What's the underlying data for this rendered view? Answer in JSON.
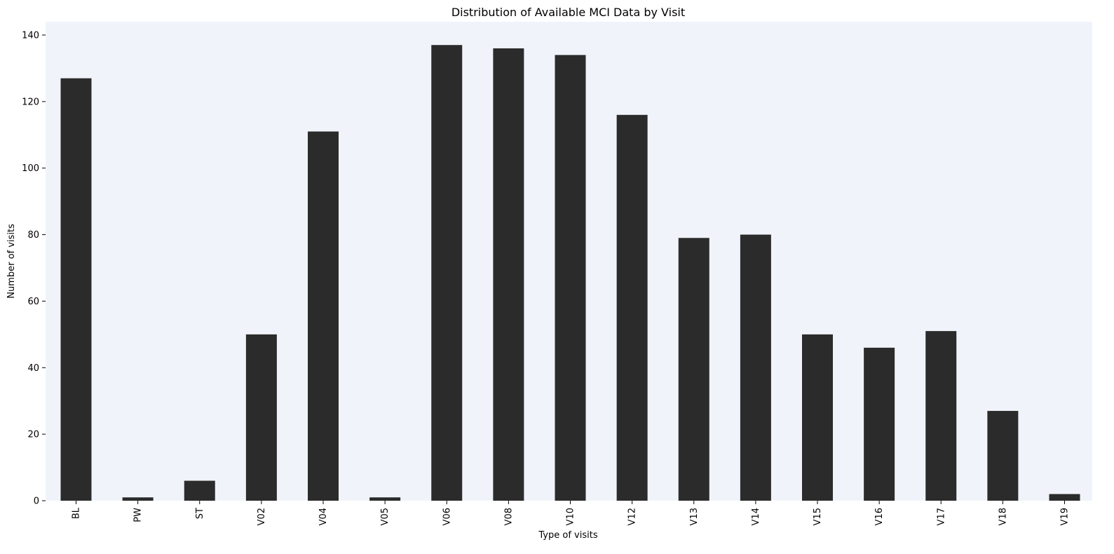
{
  "chart_data": {
    "type": "bar",
    "title": "Distribution of Available MCI Data by Visit",
    "xlabel": "Type of visits",
    "ylabel": "Number of visits",
    "categories": [
      "BL",
      "PW",
      "ST",
      "V02",
      "V04",
      "V05",
      "V06",
      "V08",
      "V10",
      "V12",
      "V13",
      "V14",
      "V15",
      "V16",
      "V17",
      "V18",
      "V19"
    ],
    "values": [
      127,
      1,
      6,
      50,
      111,
      1,
      137,
      136,
      134,
      116,
      79,
      80,
      50,
      46,
      51,
      27,
      2
    ],
    "ylim": [
      0,
      144
    ],
    "yticks": [
      0,
      20,
      40,
      60,
      80,
      100,
      120,
      140
    ],
    "grid": false,
    "legend": "none",
    "colors": {
      "bar": "#2b2b2b",
      "plot_background": "#f0f4fa",
      "figure_background": "#ffffff"
    }
  }
}
